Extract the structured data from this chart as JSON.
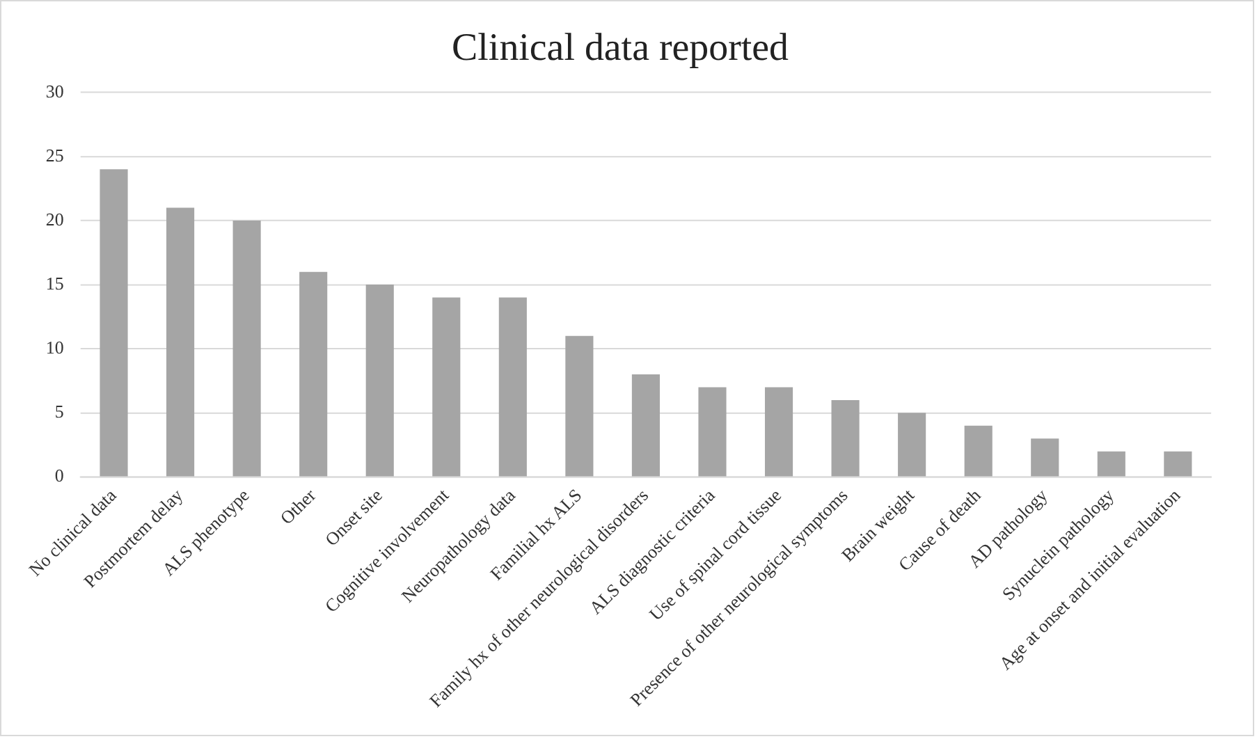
{
  "chart_data": {
    "type": "bar",
    "title": "Clinical data reported",
    "categories": [
      "No clinical data",
      "Postmortem delay",
      "ALS phenotype",
      "Other",
      "Onset site",
      "Cognitive involvement",
      "Neuropathology data",
      "Familial hx ALS",
      "Family hx of other neurological disorders",
      "ALS diagnostic criteria",
      "Use of spinal cord tissue",
      "Presence of other neurological symptoms",
      "Brain weight",
      "Cause of death",
      "AD pathology",
      "Synuclein pathology",
      "Age at onset and initial evaluation"
    ],
    "values": [
      24,
      21,
      20,
      16,
      15,
      14,
      14,
      11,
      8,
      7,
      7,
      6,
      5,
      4,
      3,
      2,
      2
    ],
    "color": "#a5a5a5",
    "ylim": [
      0,
      30
    ],
    "yticks": [
      0,
      5,
      10,
      15,
      20,
      25,
      30
    ],
    "grid": "y",
    "legend": false
  }
}
